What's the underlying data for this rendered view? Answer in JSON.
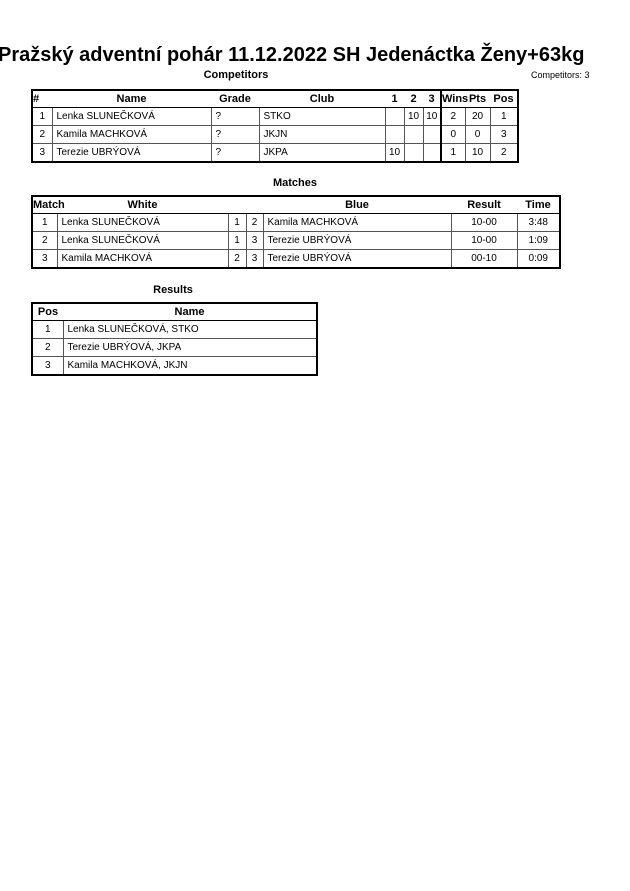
{
  "title": "Pražský adventní pohár  11.12.2022  SH Jedenáctka   Ženy+63kg",
  "competitors_count": "Competitors: 3",
  "competitors": {
    "heading": "Competitors",
    "headers": [
      "#",
      "Name",
      "Grade",
      "Club",
      "1",
      "2",
      "3",
      "Wins",
      "Pts",
      "Pos"
    ],
    "rows": [
      [
        "1",
        "Lenka SLUNEČKOVÁ",
        "?",
        "STKO",
        "",
        "10",
        "10",
        "2",
        "20",
        "1"
      ],
      [
        "2",
        "Kamila MACHKOVÁ",
        "?",
        "JKJN",
        "",
        "",
        "",
        "0",
        "0",
        "3"
      ],
      [
        "3",
        "Terezie UBRÝOVÁ",
        "?",
        "JKPA",
        "10",
        "",
        "",
        "1",
        "10",
        "2"
      ]
    ]
  },
  "matches": {
    "heading": "Matches",
    "headers": [
      "Match",
      "White",
      "",
      "",
      "Blue",
      "Result",
      "Time"
    ],
    "rows": [
      [
        "1",
        "Lenka SLUNEČKOVÁ",
        "1",
        "2",
        "Kamila MACHKOVÁ",
        "10-00",
        "3:48"
      ],
      [
        "2",
        "Lenka SLUNEČKOVÁ",
        "1",
        "3",
        "Terezie UBRÝOVÁ",
        "10-00",
        "1:09"
      ],
      [
        "3",
        "Kamila MACHKOVÁ",
        "2",
        "3",
        "Terezie UBRÝOVÁ",
        "00-10",
        "0:09"
      ]
    ]
  },
  "results": {
    "heading": "Results",
    "headers": [
      "Pos",
      "Name"
    ],
    "rows": [
      [
        "1",
        "Lenka SLUNEČKOVÁ, STKO"
      ],
      [
        "2",
        "Terezie UBRÝOVÁ, JKPA"
      ],
      [
        "3",
        "Kamila MACHKOVÁ, JKJN"
      ]
    ]
  }
}
